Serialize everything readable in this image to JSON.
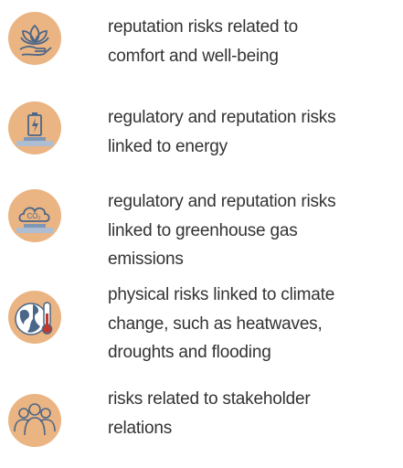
{
  "items": [
    {
      "lines": [
        "reputation risks related to",
        "comfort and well-being"
      ]
    },
    {
      "lines": [
        "regulatory and reputation risks",
        "linked to energy"
      ]
    },
    {
      "lines": [
        "regulatory and reputation risks",
        "linked to greenhouse gas",
        "emissions"
      ]
    },
    {
      "lines": [
        "physical risks linked to climate",
        "change, such as heatwaves,",
        "droughts and flooding"
      ]
    },
    {
      "lines": [
        "risks related to stakeholder",
        "relations"
      ]
    }
  ]
}
